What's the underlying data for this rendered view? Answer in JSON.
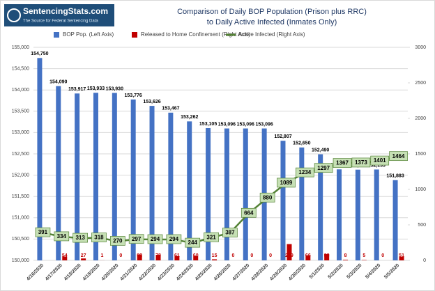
{
  "logo": {
    "name": "SentencingStats.com",
    "tagline": "The Source for Federal Sentencing Data"
  },
  "chart_data": {
    "type": "bar",
    "title": [
      "Comparison of Daily BOP Population (Prison plus RRC)",
      "to Daily Active Infected (Inmates Only)"
    ],
    "categories": [
      "4/16/2020",
      "4/17/2020",
      "4/18/2020",
      "4/19/2020",
      "4/20/2020",
      "4/21/2020",
      "4/22/2020",
      "4/23/2020",
      "4/24/2020",
      "4/25/2020",
      "4/26/2020",
      "4/27/2020",
      "4/28/2020",
      "4/29/2020",
      "4/30/2020",
      "5/1/2020",
      "5/2/2020",
      "5/3/2020",
      "5/4/2020",
      "5/5/2020"
    ],
    "series": [
      {
        "name": "BOP Pop. (Left Axis)",
        "color": "#4472c4",
        "axis": "y",
        "type": "bar",
        "values": [
          154750,
          154090,
          153917,
          153933,
          153930,
          153776,
          153626,
          153467,
          153262,
          153105,
          153096,
          153096,
          153096,
          152807,
          152650,
          152490,
          152136,
          152129,
          152133,
          151883
        ],
        "value_labels": [
          "154,750",
          "154,090",
          "153,917",
          "153,933",
          "153,930",
          "153,776",
          "153,626",
          "153,467",
          "153,262",
          "153,105",
          "153,096",
          "153,096",
          "153,096",
          "152,807",
          "152,650",
          "152,490",
          "152,136",
          "152,129",
          "152,133",
          "151,883"
        ]
      },
      {
        "name": "Released to Home Confinement (Right Axis)",
        "color": "#c00000",
        "axis": "y2",
        "type": "bar",
        "values": [
          null,
          54,
          27,
          1,
          0,
          82,
          78,
          61,
          60,
          15,
          0,
          0,
          0,
          229,
          66,
          88,
          8,
          5,
          0,
          51
        ]
      },
      {
        "name": "Active Infected (Right Axis)",
        "color": "#548235",
        "axis": "y2",
        "type": "line",
        "values": [
          391,
          334,
          313,
          318,
          270,
          297,
          294,
          294,
          244,
          321,
          387,
          664,
          880,
          1089,
          1234,
          1297,
          1367,
          1373,
          1401,
          1464
        ]
      }
    ],
    "ylim": [
      150000,
      155000
    ],
    "yticks": [
      {
        "value": 150000,
        "label": "150,000"
      },
      {
        "value": 150500,
        "label": "150,500"
      },
      {
        "value": 151000,
        "label": "151,000"
      },
      {
        "value": 151500,
        "label": "151,500"
      },
      {
        "value": 152000,
        "label": "152,000"
      },
      {
        "value": 152500,
        "label": "152,500"
      },
      {
        "value": 153000,
        "label": "153,000"
      },
      {
        "value": 153500,
        "label": "153,500"
      },
      {
        "value": 154000,
        "label": "154,000"
      },
      {
        "value": 154500,
        "label": "154,500"
      },
      {
        "value": 155000,
        "label": "155,000"
      }
    ],
    "y2lim": [
      0,
      3000
    ],
    "y2ticks": [
      0,
      500,
      1000,
      1500,
      2000,
      2500,
      3000
    ],
    "grid": true,
    "legend": "top"
  }
}
